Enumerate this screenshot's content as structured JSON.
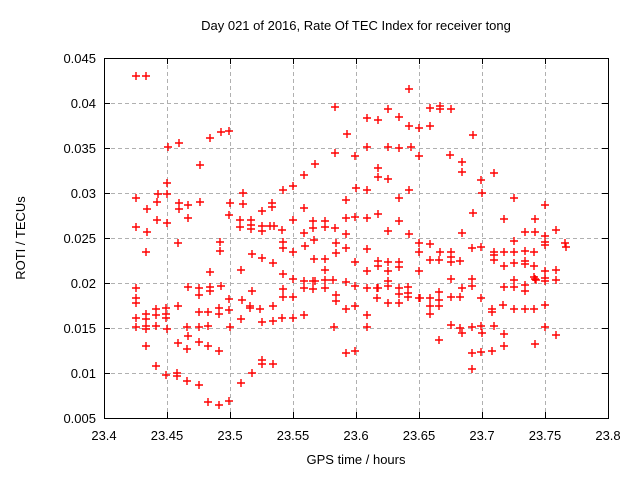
{
  "title": "Day 021 of 2016, Rate Of TEC Index for receiver tong",
  "chart_data": {
    "type": "scatter",
    "title": "Day 021 of 2016, Rate Of TEC Index for receiver tong",
    "xlabel": "GPS time / hours",
    "ylabel": "ROTI / TECUs",
    "xlim": [
      23.4,
      23.8
    ],
    "ylim": [
      0.005,
      0.045
    ],
    "x_ticks": [
      {
        "v": 23.4,
        "label": "23.4"
      },
      {
        "v": 23.45,
        "label": "23.45"
      },
      {
        "v": 23.5,
        "label": "23.5"
      },
      {
        "v": 23.55,
        "label": "23.55"
      },
      {
        "v": 23.6,
        "label": "23.6"
      },
      {
        "v": 23.65,
        "label": "23.65"
      },
      {
        "v": 23.7,
        "label": "23.7"
      },
      {
        "v": 23.75,
        "label": "23.75"
      },
      {
        "v": 23.8,
        "label": "23.8"
      }
    ],
    "y_ticks": [
      {
        "v": 0.005,
        "label": "0.005"
      },
      {
        "v": 0.01,
        "label": "0.01"
      },
      {
        "v": 0.015,
        "label": "0.015"
      },
      {
        "v": 0.02,
        "label": "0.02"
      },
      {
        "v": 0.025,
        "label": "0.025"
      },
      {
        "v": 0.03,
        "label": "0.03"
      },
      {
        "v": 0.035,
        "label": "0.035"
      },
      {
        "v": 0.04,
        "label": "0.04"
      },
      {
        "v": 0.045,
        "label": "0.045"
      }
    ],
    "grid": true,
    "legend": "none",
    "marker": "plus",
    "marker_color": "#ff0000",
    "grid_color": "#b0b0b0",
    "frame_color": "#000000",
    "points": [
      [
        23.4256,
        0.043
      ],
      [
        23.4331,
        0.043
      ],
      [
        23.4841,
        0.0361
      ],
      [
        23.4926,
        0.0368
      ],
      [
        23.4995,
        0.0369
      ],
      [
        23.4508,
        0.0351
      ],
      [
        23.4595,
        0.0356
      ],
      [
        23.4762,
        0.0331
      ],
      [
        23.4502,
        0.0311
      ],
      [
        23.4256,
        0.0295
      ],
      [
        23.4431,
        0.0299
      ],
      [
        23.4498,
        0.0299
      ],
      [
        23.4423,
        0.029
      ],
      [
        23.4339,
        0.0282
      ],
      [
        23.4595,
        0.0289
      ],
      [
        23.4595,
        0.0282
      ],
      [
        23.4667,
        0.0287
      ],
      [
        23.4667,
        0.0272
      ],
      [
        23.4762,
        0.029
      ],
      [
        23.4423,
        0.027
      ],
      [
        23.4498,
        0.0267
      ],
      [
        23.4256,
        0.0262
      ],
      [
        23.4339,
        0.0257
      ],
      [
        23.499,
        0.0276
      ],
      [
        23.5833,
        0.0396
      ],
      [
        23.5926,
        0.0366
      ],
      [
        23.5836,
        0.0345
      ],
      [
        23.5994,
        0.0341
      ],
      [
        23.5675,
        0.0332
      ],
      [
        23.5587,
        0.032
      ],
      [
        23.5498,
        0.0308
      ],
      [
        23.5418,
        0.0303
      ],
      [
        23.5101,
        0.03
      ],
      [
        23.5,
        0.0289
      ],
      [
        23.5101,
        0.0288
      ],
      [
        23.5331,
        0.0289
      ],
      [
        23.5331,
        0.0285
      ],
      [
        23.5256,
        0.028
      ],
      [
        23.5587,
        0.0283
      ],
      [
        23.5918,
        0.0292
      ],
      [
        23.5993,
        0.0273
      ],
      [
        23.5918,
        0.0272
      ],
      [
        23.5079,
        0.027
      ],
      [
        23.5167,
        0.027
      ],
      [
        23.5167,
        0.0265
      ],
      [
        23.5079,
        0.0262
      ],
      [
        23.5167,
        0.026
      ],
      [
        23.5252,
        0.0263
      ],
      [
        23.5252,
        0.0258
      ],
      [
        23.5317,
        0.0263
      ],
      [
        23.5349,
        0.0263
      ],
      [
        23.541,
        0.0259
      ],
      [
        23.5498,
        0.027
      ],
      [
        23.5661,
        0.0269
      ],
      [
        23.5661,
        0.0261
      ],
      [
        23.5754,
        0.0269
      ],
      [
        23.5754,
        0.0262
      ],
      [
        23.5833,
        0.0261
      ],
      [
        23.5587,
        0.0256
      ],
      [
        23.5921,
        0.0254
      ],
      [
        23.6423,
        0.0415
      ],
      [
        23.6256,
        0.0393
      ],
      [
        23.6587,
        0.0395
      ],
      [
        23.6667,
        0.0397
      ],
      [
        23.6667,
        0.0393
      ],
      [
        23.6754,
        0.0393
      ],
      [
        23.6087,
        0.0383
      ],
      [
        23.6171,
        0.0381
      ],
      [
        23.6339,
        0.0384
      ],
      [
        23.6423,
        0.0374
      ],
      [
        23.6502,
        0.0372
      ],
      [
        23.6587,
        0.0375
      ],
      [
        23.6926,
        0.0364
      ],
      [
        23.6087,
        0.0351
      ],
      [
        23.6256,
        0.0351
      ],
      [
        23.6339,
        0.035
      ],
      [
        23.644,
        0.0351
      ],
      [
        23.6502,
        0.0341
      ],
      [
        23.6748,
        0.0342
      ],
      [
        23.6841,
        0.0335
      ],
      [
        23.6841,
        0.0323
      ],
      [
        23.699,
        0.0315
      ],
      [
        23.6171,
        0.0328
      ],
      [
        23.6171,
        0.0318
      ],
      [
        23.6251,
        0.0316
      ],
      [
        23.6,
        0.0306
      ],
      [
        23.6087,
        0.0303
      ],
      [
        23.6423,
        0.0303
      ],
      [
        23.6339,
        0.0295
      ],
      [
        23.6087,
        0.0272
      ],
      [
        23.6171,
        0.0277
      ],
      [
        23.6339,
        0.0269
      ],
      [
        23.6926,
        0.0278
      ],
      [
        23.6256,
        0.0258
      ],
      [
        23.6423,
        0.0255
      ],
      [
        23.6841,
        0.0256
      ],
      [
        23.7093,
        0.0322
      ],
      [
        23.7,
        0.03
      ],
      [
        23.7257,
        0.0294
      ],
      [
        23.7503,
        0.0287
      ],
      [
        23.7173,
        0.0271
      ],
      [
        23.7423,
        0.0271
      ],
      [
        23.7339,
        0.0257
      ],
      [
        23.7418,
        0.0257
      ],
      [
        23.7587,
        0.0259
      ],
      [
        23.7503,
        0.0252
      ],
      [
        23.4331,
        0.0235
      ],
      [
        23.4587,
        0.0244
      ],
      [
        23.4921,
        0.0246
      ],
      [
        23.4921,
        0.0236
      ],
      [
        23.4841,
        0.0212
      ],
      [
        23.4256,
        0.0194
      ],
      [
        23.4667,
        0.0196
      ],
      [
        23.4754,
        0.0194
      ],
      [
        23.4841,
        0.0196
      ],
      [
        23.4841,
        0.0191
      ],
      [
        23.4754,
        0.0187
      ],
      [
        23.4926,
        0.0197
      ],
      [
        23.4256,
        0.0183
      ],
      [
        23.4256,
        0.0178
      ],
      [
        23.441,
        0.0171
      ],
      [
        23.449,
        0.0172
      ],
      [
        23.4587,
        0.0174
      ],
      [
        23.4256,
        0.0161
      ],
      [
        23.4331,
        0.0166
      ],
      [
        23.4331,
        0.016
      ],
      [
        23.441,
        0.0165
      ],
      [
        23.449,
        0.0166
      ],
      [
        23.449,
        0.0161
      ],
      [
        23.4754,
        0.0168
      ],
      [
        23.4828,
        0.0168
      ],
      [
        23.4913,
        0.0172
      ],
      [
        23.4913,
        0.0166
      ],
      [
        23.4995,
        0.0182
      ],
      [
        23.4995,
        0.017
      ],
      [
        23.4251,
        0.0151
      ],
      [
        23.4331,
        0.0152
      ],
      [
        23.4331,
        0.0149
      ],
      [
        23.441,
        0.0152
      ],
      [
        23.4502,
        0.0149
      ],
      [
        23.4661,
        0.0151
      ],
      [
        23.4754,
        0.0151
      ],
      [
        23.4828,
        0.0152
      ],
      [
        23.4667,
        0.0141
      ],
      [
        23.4587,
        0.0133
      ],
      [
        23.4331,
        0.013
      ],
      [
        23.4661,
        0.0127
      ],
      [
        23.4754,
        0.0134
      ],
      [
        23.4828,
        0.013
      ],
      [
        23.4913,
        0.0124
      ],
      [
        23.441,
        0.0108
      ],
      [
        23.449,
        0.0098
      ],
      [
        23.4577,
        0.01
      ],
      [
        23.4577,
        0.0097
      ],
      [
        23.4661,
        0.0091
      ],
      [
        23.4754,
        0.0087
      ],
      [
        23.4828,
        0.0068
      ],
      [
        23.4913,
        0.0064
      ],
      [
        23.4995,
        0.0069
      ],
      [
        23.5423,
        0.0246
      ],
      [
        23.5423,
        0.0239
      ],
      [
        23.5669,
        0.0248
      ],
      [
        23.5595,
        0.0241
      ],
      [
        23.5502,
        0.0235
      ],
      [
        23.5841,
        0.0245
      ],
      [
        23.5841,
        0.0233
      ],
      [
        23.5921,
        0.0239
      ],
      [
        23.5172,
        0.0232
      ],
      [
        23.5256,
        0.0228
      ],
      [
        23.5339,
        0.0222
      ],
      [
        23.5669,
        0.0227
      ],
      [
        23.5754,
        0.0227
      ],
      [
        23.5992,
        0.0223
      ],
      [
        23.5754,
        0.0214
      ],
      [
        23.5087,
        0.0214
      ],
      [
        23.5423,
        0.021
      ],
      [
        23.5498,
        0.0205
      ],
      [
        23.5587,
        0.0202
      ],
      [
        23.5656,
        0.0202
      ],
      [
        23.5672,
        0.0202
      ],
      [
        23.5754,
        0.0203
      ],
      [
        23.582,
        0.0203
      ],
      [
        23.5921,
        0.0201
      ],
      [
        23.5423,
        0.0193
      ],
      [
        23.5587,
        0.0195
      ],
      [
        23.5661,
        0.0193
      ],
      [
        23.5754,
        0.0195
      ],
      [
        23.5172,
        0.0191
      ],
      [
        23.5423,
        0.0184
      ],
      [
        23.5498,
        0.0184
      ],
      [
        23.5841,
        0.0187
      ],
      [
        23.5841,
        0.018
      ],
      [
        23.5093,
        0.0181
      ],
      [
        23.5159,
        0.0175
      ],
      [
        23.5159,
        0.0172
      ],
      [
        23.5238,
        0.0171
      ],
      [
        23.5339,
        0.0175
      ],
      [
        23.5921,
        0.0171
      ],
      [
        23.5992,
        0.0174
      ],
      [
        23.5087,
        0.016
      ],
      [
        23.5256,
        0.0157
      ],
      [
        23.5339,
        0.0158
      ],
      [
        23.541,
        0.0161
      ],
      [
        23.5498,
        0.0161
      ],
      [
        23.5587,
        0.0164
      ],
      [
        23.5,
        0.0151
      ],
      [
        23.5828,
        0.0151
      ],
      [
        23.5256,
        0.0114
      ],
      [
        23.5256,
        0.011
      ],
      [
        23.5339,
        0.011
      ],
      [
        23.5172,
        0.01
      ],
      [
        23.5087,
        0.0089
      ],
      [
        23.5921,
        0.0122
      ],
      [
        23.5996,
        0.0124
      ],
      [
        23.6087,
        0.0238
      ],
      [
        23.6502,
        0.0245
      ],
      [
        23.6587,
        0.0243
      ],
      [
        23.692,
        0.0239
      ],
      [
        23.699,
        0.024
      ],
      [
        23.6171,
        0.0224
      ],
      [
        23.6256,
        0.0223
      ],
      [
        23.6339,
        0.0223
      ],
      [
        23.6502,
        0.0235
      ],
      [
        23.6669,
        0.0235
      ],
      [
        23.6754,
        0.0235
      ],
      [
        23.6754,
        0.0229
      ],
      [
        23.6587,
        0.0226
      ],
      [
        23.6661,
        0.0226
      ],
      [
        23.6754,
        0.0223
      ],
      [
        23.6828,
        0.0224
      ],
      [
        23.6171,
        0.0219
      ],
      [
        23.6339,
        0.0218
      ],
      [
        23.6087,
        0.0213
      ],
      [
        23.6256,
        0.0213
      ],
      [
        23.6502,
        0.0213
      ],
      [
        23.6754,
        0.0205
      ],
      [
        23.692,
        0.0205
      ],
      [
        23.6256,
        0.0202
      ],
      [
        23.692,
        0.0197
      ],
      [
        23.6087,
        0.0194
      ],
      [
        23.6164,
        0.0194
      ],
      [
        23.6175,
        0.0194
      ],
      [
        23.6256,
        0.0197
      ],
      [
        23.6339,
        0.0194
      ],
      [
        23.641,
        0.0196
      ],
      [
        23.641,
        0.0189
      ],
      [
        23.6339,
        0.0188
      ],
      [
        23.641,
        0.0184
      ],
      [
        23.6164,
        0.0183
      ],
      [
        23.6256,
        0.0178
      ],
      [
        23.6339,
        0.0178
      ],
      [
        23.6497,
        0.0183
      ],
      [
        23.6508,
        0.0183
      ],
      [
        23.6587,
        0.0183
      ],
      [
        23.6661,
        0.019
      ],
      [
        23.6661,
        0.0181
      ],
      [
        23.6754,
        0.0184
      ],
      [
        23.6828,
        0.0185
      ],
      [
        23.6841,
        0.0194
      ],
      [
        23.5996,
        0.0197
      ],
      [
        23.6993,
        0.0183
      ],
      [
        23.6587,
        0.0174
      ],
      [
        23.6661,
        0.0174
      ],
      [
        23.6587,
        0.0166
      ],
      [
        23.6087,
        0.0165
      ],
      [
        23.6087,
        0.0151
      ],
      [
        23.6754,
        0.0153
      ],
      [
        23.6828,
        0.015
      ],
      [
        23.6841,
        0.0144
      ],
      [
        23.692,
        0.0151
      ],
      [
        23.6995,
        0.0152
      ],
      [
        23.6661,
        0.0137
      ],
      [
        23.692,
        0.0122
      ],
      [
        23.699,
        0.0123
      ],
      [
        23.692,
        0.0104
      ],
      [
        23.7257,
        0.0247
      ],
      [
        23.7503,
        0.0246
      ],
      [
        23.7503,
        0.0242
      ],
      [
        23.7655,
        0.0244
      ],
      [
        23.7667,
        0.024
      ],
      [
        23.7093,
        0.0235
      ],
      [
        23.7093,
        0.0231
      ],
      [
        23.7173,
        0.0234
      ],
      [
        23.7257,
        0.0235
      ],
      [
        23.7339,
        0.0236
      ],
      [
        23.741,
        0.0235
      ],
      [
        23.7093,
        0.0226
      ],
      [
        23.7173,
        0.0219
      ],
      [
        23.7257,
        0.0222
      ],
      [
        23.7339,
        0.0224
      ],
      [
        23.7339,
        0.0221
      ],
      [
        23.741,
        0.0219
      ],
      [
        23.741,
        0.0207
      ],
      [
        23.7503,
        0.0213
      ],
      [
        23.7587,
        0.0214
      ],
      [
        23.7257,
        0.0203
      ],
      [
        23.7418,
        0.0205
      ],
      [
        23.7431,
        0.0203
      ],
      [
        23.7503,
        0.0206
      ],
      [
        23.7503,
        0.0202
      ],
      [
        23.7587,
        0.0203
      ],
      [
        23.7173,
        0.0196
      ],
      [
        23.7257,
        0.0196
      ],
      [
        23.7339,
        0.0198
      ],
      [
        23.7339,
        0.0191
      ],
      [
        23.7165,
        0.0176
      ],
      [
        23.708,
        0.0171
      ],
      [
        23.708,
        0.0168
      ],
      [
        23.7257,
        0.0171
      ],
      [
        23.7339,
        0.0171
      ],
      [
        23.741,
        0.0171
      ],
      [
        23.7503,
        0.0176
      ],
      [
        23.7093,
        0.0152
      ],
      [
        23.7503,
        0.0151
      ],
      [
        23.7587,
        0.0142
      ],
      [
        23.6998,
        0.0144
      ],
      [
        23.7173,
        0.0143
      ],
      [
        23.7423,
        0.0132
      ],
      [
        23.708,
        0.0125
      ],
      [
        23.7173,
        0.013
      ]
    ]
  }
}
